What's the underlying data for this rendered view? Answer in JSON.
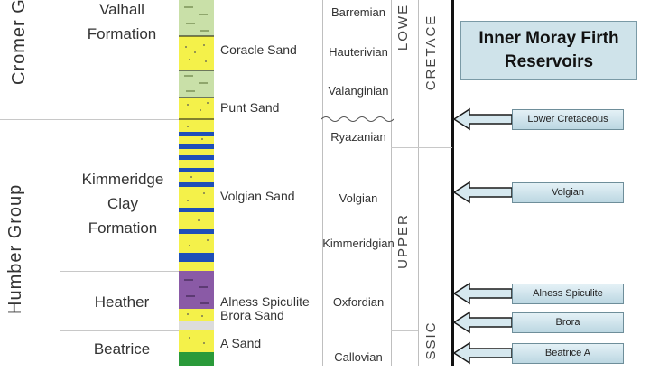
{
  "groups": {
    "cromer": "Cromer Group",
    "humber": "Humber Group"
  },
  "formations": {
    "valhall": [
      "Valhall",
      "Formation"
    ],
    "kimmeridge": [
      "Kimmeridge",
      "Clay",
      "Formation"
    ],
    "heather": "Heather",
    "beatrice": "Beatrice"
  },
  "sands": {
    "coracle": "Coracle Sand",
    "punt": "Punt Sand",
    "volgian": "Volgian Sand",
    "alness": "Alness Spiculite",
    "brora": "Brora Sand",
    "a_sand": "A Sand"
  },
  "stages": {
    "barremian": "Barremian",
    "hauterivian": "Hauterivian",
    "valanginian": "Valanginian",
    "ryazanian": "Ryazanian",
    "volgian": "Volgian",
    "kimmeridgian": "Kimmeridgian",
    "oxfordian": "Oxfordian",
    "callovian": "Callovian"
  },
  "epochs": {
    "lower": "LOWE",
    "cretaceous": "CRETACE",
    "upper": "UPPER",
    "jurassic": "SSIC"
  },
  "title": [
    "Inner Moray Firth",
    "Reservoirs"
  ],
  "reservoirs": [
    "Lower Cretaceous",
    "Volgian",
    "Alness Spiculite",
    "Brora",
    "Beatrice A"
  ],
  "colors": {
    "sand_yellow": "#f4f14a",
    "shale_green": "#c9e0a8",
    "limestone_blue": "#1f4fb8",
    "spiculite_purple": "#8a5aa6",
    "title_fill": "#cfe3ea"
  }
}
